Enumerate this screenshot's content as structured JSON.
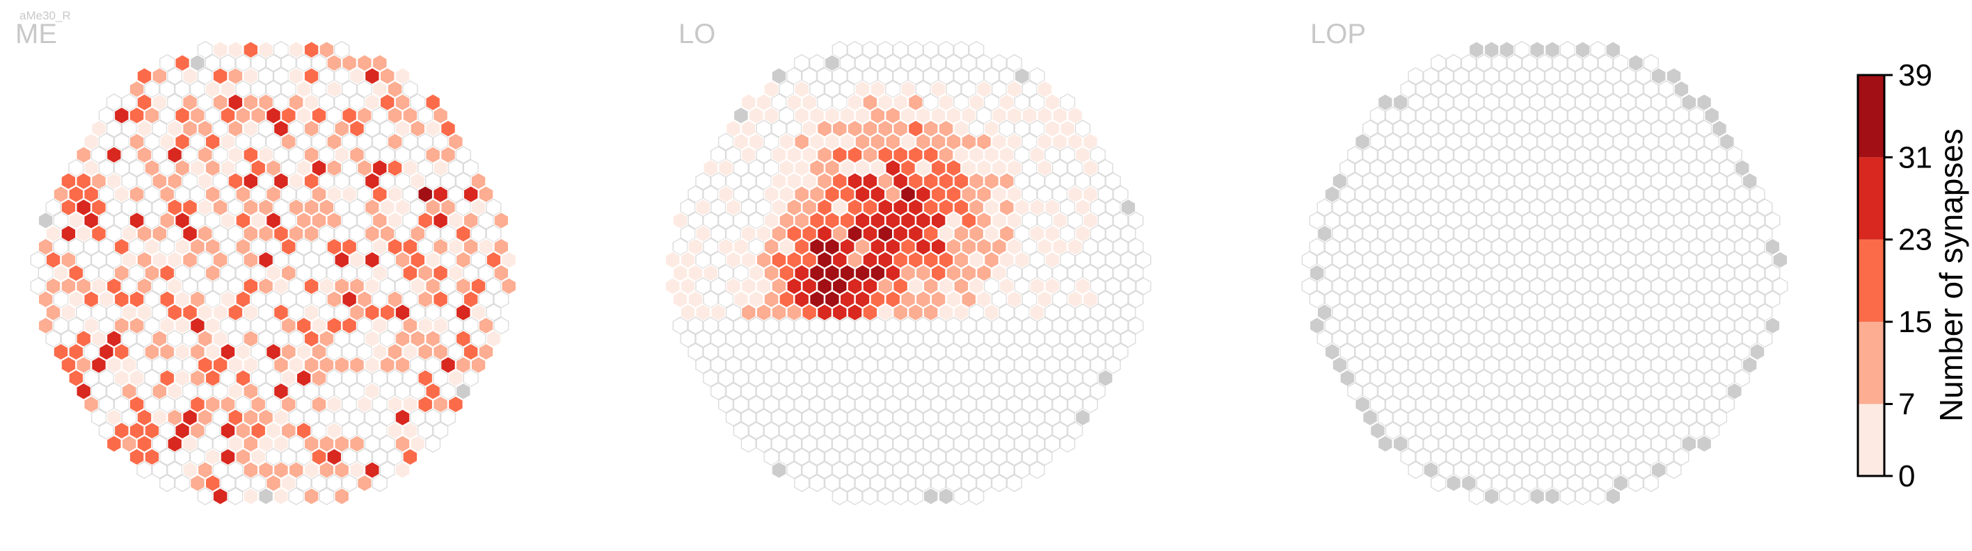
{
  "neuron_label": "aMe30_R",
  "colormap": [
    "#fdebe3",
    "#fcad92",
    "#fb6b4a",
    "#d8281f",
    "#a20f14"
  ],
  "empty_color": "#ffffff",
  "outside_color": "#cccccc",
  "chart_data": {
    "type": "heatmap",
    "description_type": "hexagonal eye-map heatmaps",
    "panels": [
      {
        "name": "ME",
        "region": "ME",
        "synapse_distribution": "scattered across the whole medulla disc, mostly 0-23, one maximum in upper right",
        "bins_present": [
          0,
          7,
          15,
          23,
          31
        ],
        "max_observed": 35,
        "bins_count": {
          "0-7": 240,
          "7-15": 150,
          "15-23": 60,
          "23-31": 15,
          "31-39": 1
        }
      },
      {
        "name": "LO",
        "region": "LO",
        "synapse_distribution": "concentrated in the upper half of the lobula, peaks (31-39) in center-left",
        "bins_present": [
          0,
          7,
          15,
          23,
          31
        ],
        "max_observed": 38,
        "bins_count": {
          "0-7": 110,
          "7-15": 60,
          "15-23": 45,
          "23-31": 25,
          "31-39": 6
        }
      },
      {
        "name": "LOP",
        "region": "LOP",
        "synapse_distribution": "no synapses; outer ring columns shown in grey",
        "bins_present": [],
        "max_observed": 0,
        "bins_count": {
          "0-7": 0,
          "7-15": 0,
          "15-23": 0,
          "23-31": 0,
          "31-39": 0
        }
      }
    ],
    "colorbar": {
      "label": "Number of synapses",
      "ticks": [
        0,
        7,
        15,
        23,
        31,
        39
      ],
      "range": [
        0,
        39
      ],
      "position": "right"
    }
  }
}
